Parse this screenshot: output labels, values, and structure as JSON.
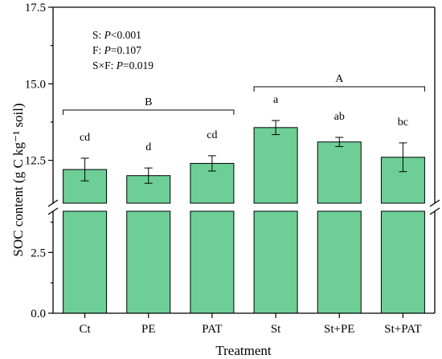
{
  "chart_data": {
    "type": "bar",
    "title": "",
    "xlabel": "Treatment",
    "ylabel": "SOC content (g C kg⁻¹ soil)",
    "categories": [
      "Ct",
      "PE",
      "PAT",
      "St",
      "St+PE",
      "St+PAT"
    ],
    "values": [
      12.2,
      12.0,
      12.4,
      13.57,
      13.1,
      12.6
    ],
    "errors": [
      0.37,
      0.25,
      0.25,
      0.23,
      0.15,
      0.47
    ],
    "letters": [
      "cd",
      "d",
      "cd",
      "a",
      "ab",
      "bc"
    ],
    "bar_color": "#6dcf96",
    "broken_axis": true,
    "y_lower_range": [
      0,
      4.2
    ],
    "y_upper_range": [
      11.1,
      17.5
    ],
    "y_lower_ticks": [
      "0.0",
      "2.5"
    ],
    "y_upper_ticks": [
      "12.5",
      "15.0",
      "17.5"
    ],
    "stats_text": [
      {
        "prefix": "S: ",
        "italic": "P",
        "suffix": "<0.001"
      },
      {
        "prefix": "F: ",
        "italic": "P",
        "suffix": "=0.107"
      },
      {
        "prefix": "S×F: ",
        "italic": "P",
        "suffix": "=0.019"
      }
    ],
    "group_brackets": [
      {
        "label": "B",
        "from": 0,
        "to": 2
      },
      {
        "label": "A",
        "from": 3,
        "to": 5
      }
    ]
  }
}
